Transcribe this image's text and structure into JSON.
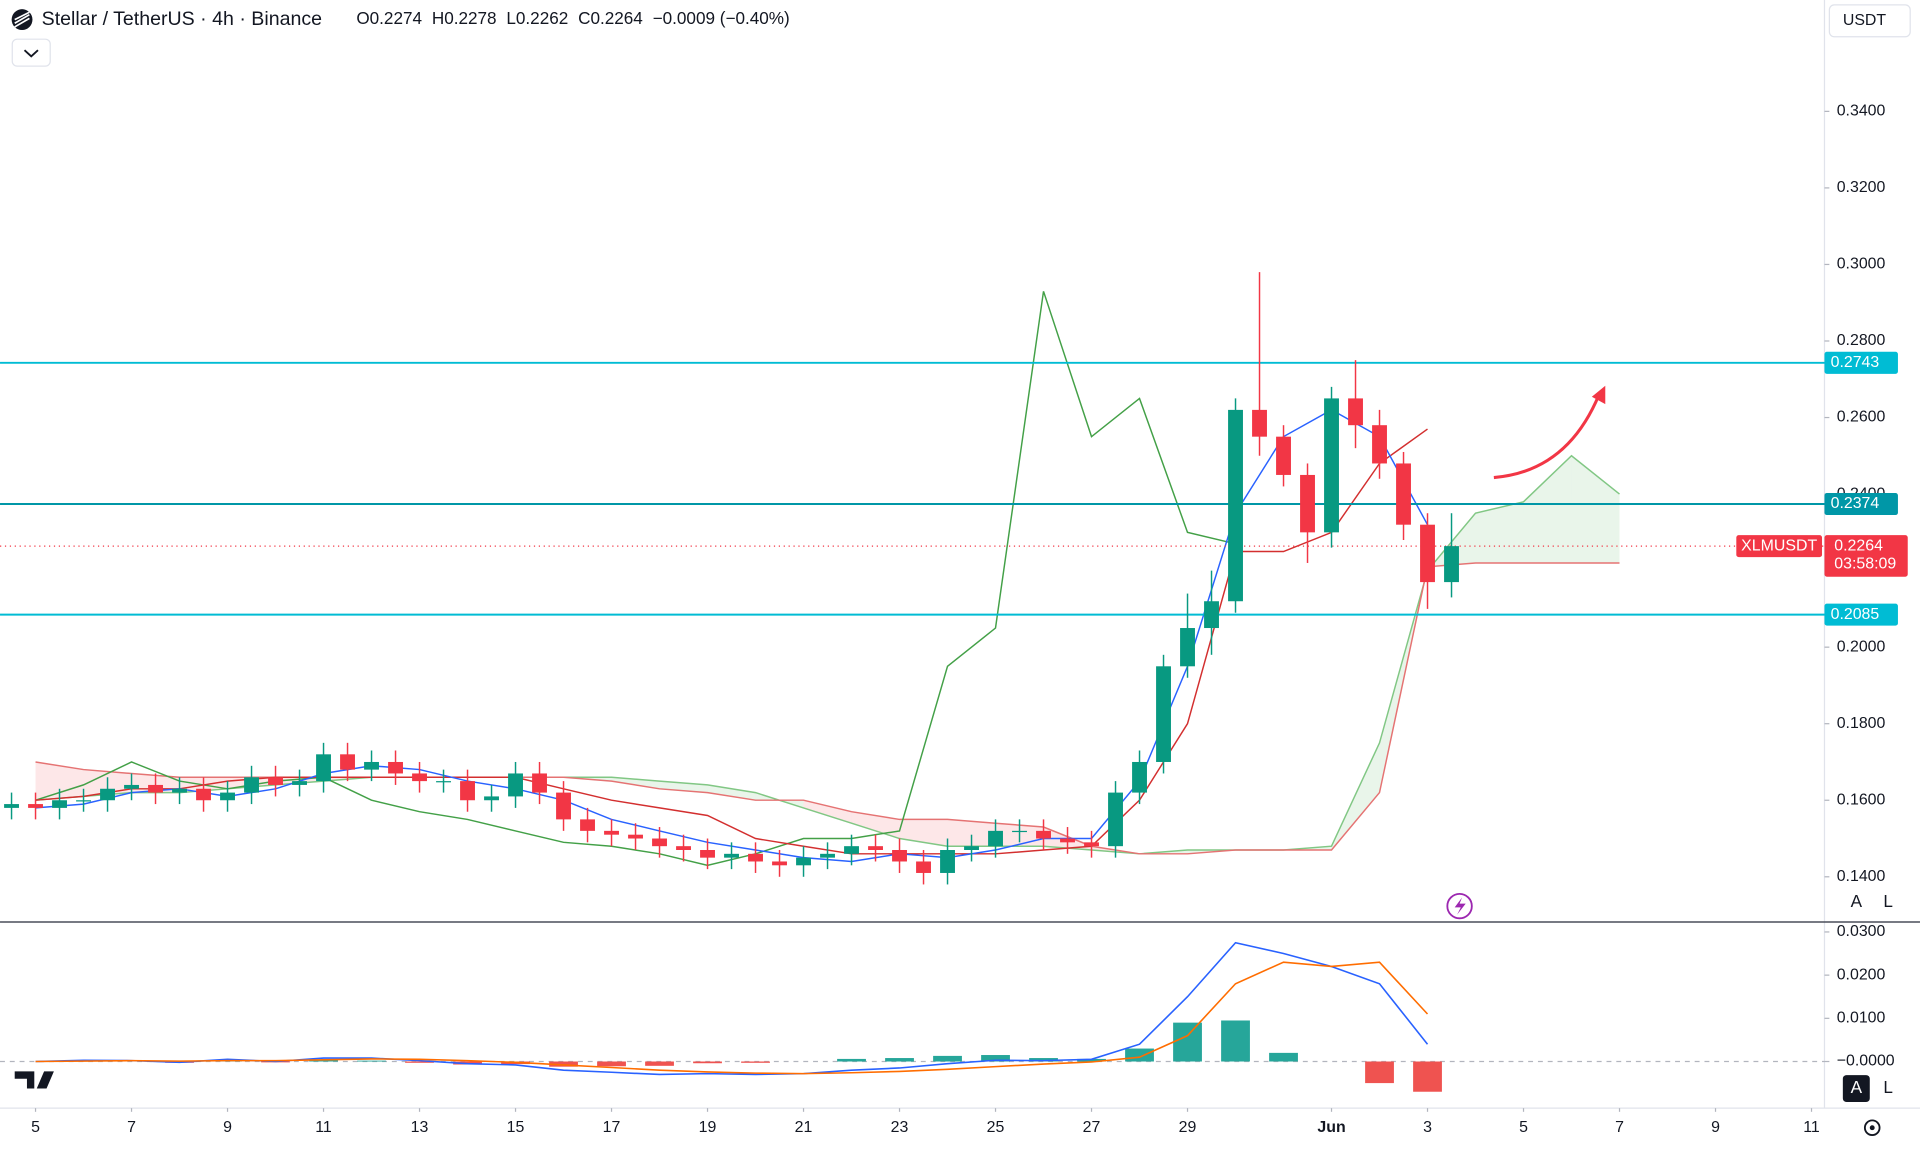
{
  "chart_data": {
    "type": "candlestick",
    "title": "Stellar / TetherUS · 4h · Binance",
    "ohlc_labels": [
      "O0.2274",
      "H0.2278",
      "L0.2262",
      "C0.2264",
      "−0.0009 (−0.40%)"
    ],
    "currency": "USDT",
    "symbol": "XLMUSDT",
    "countdown": "03:58:09",
    "last_price": 0.2264,
    "buttons": {
      "auto": "A",
      "log": "L"
    },
    "up_color": "#089981",
    "down_color": "#f23645",
    "xlim": [
      4.26,
      42.27
    ],
    "xticks": [
      5,
      7,
      9,
      11,
      13,
      15,
      17,
      19,
      21,
      23,
      25,
      27,
      29,
      {
        "value": 32,
        "label": "Jun"
      },
      {
        "value": 34,
        "label": "3"
      },
      {
        "value": 36,
        "label": "5"
      },
      {
        "value": 38,
        "label": "7"
      },
      {
        "value": 40,
        "label": "9"
      },
      {
        "value": 42,
        "label": "11"
      }
    ],
    "ylim": [
      0.1285,
      0.3691
    ],
    "yticks": [
      {
        "value": 0.14,
        "label": "0.1400"
      },
      {
        "value": 0.16,
        "label": "0.1600"
      },
      {
        "value": 0.18,
        "label": "0.1800"
      },
      {
        "value": 0.2,
        "label": "0.2000"
      },
      {
        "value": 0.24,
        "label": "0.2400"
      },
      {
        "value": 0.26,
        "label": "0.2600"
      },
      {
        "value": 0.28,
        "label": "0.2800"
      },
      {
        "value": 0.3,
        "label": "0.3000"
      },
      {
        "value": 0.32,
        "label": "0.3200"
      },
      {
        "value": 0.34,
        "label": "0.3400"
      }
    ],
    "levels": [
      {
        "value": 0.2743,
        "color": "#00bcd4"
      },
      {
        "value": 0.2374,
        "color": "#0097a7"
      },
      {
        "value": 0.2085,
        "color": "#00bcd4"
      }
    ],
    "x": [
      4.5,
      5,
      5.5,
      6,
      6.5,
      7,
      7.5,
      8,
      8.5,
      9,
      9.5,
      10,
      10.5,
      11,
      11.5,
      12,
      12.5,
      13,
      13.5,
      14,
      14.5,
      15,
      15.5,
      16,
      16.5,
      17,
      17.5,
      18,
      18.5,
      19,
      19.5,
      20,
      20.5,
      21,
      21.5,
      22,
      22.5,
      23,
      23.5,
      24,
      24.5,
      25,
      25.5,
      26,
      26.5,
      27,
      27.5,
      28,
      28.5,
      29,
      29.5,
      30,
      30.5,
      31,
      31.5,
      32,
      32.5,
      33,
      33.5,
      34,
      34.5
    ],
    "open": [
      0.158,
      0.159,
      0.158,
      0.16,
      0.16,
      0.163,
      0.164,
      0.162,
      0.163,
      0.16,
      0.162,
      0.166,
      0.164,
      0.165,
      0.172,
      0.168,
      0.17,
      0.167,
      0.165,
      0.165,
      0.16,
      0.161,
      0.167,
      0.162,
      0.155,
      0.152,
      0.151,
      0.15,
      0.148,
      0.147,
      0.145,
      0.146,
      0.144,
      0.143,
      0.145,
      0.146,
      0.148,
      0.147,
      0.144,
      0.141,
      0.147,
      0.148,
      0.152,
      0.152,
      0.15,
      0.149,
      0.148,
      0.162,
      0.17,
      0.195,
      0.205,
      0.212,
      0.262,
      0.255,
      0.245,
      0.23,
      0.265,
      0.258,
      0.248,
      0.232,
      0.217
    ],
    "high": [
      0.162,
      0.162,
      0.163,
      0.163,
      0.166,
      0.167,
      0.167,
      0.166,
      0.166,
      0.165,
      0.169,
      0.169,
      0.168,
      0.175,
      0.175,
      0.173,
      0.173,
      0.17,
      0.168,
      0.168,
      0.164,
      0.17,
      0.17,
      0.165,
      0.158,
      0.155,
      0.154,
      0.153,
      0.151,
      0.15,
      0.149,
      0.149,
      0.147,
      0.148,
      0.149,
      0.151,
      0.151,
      0.15,
      0.147,
      0.15,
      0.151,
      0.155,
      0.155,
      0.155,
      0.153,
      0.152,
      0.165,
      0.173,
      0.198,
      0.214,
      0.22,
      0.265,
      0.298,
      0.258,
      0.248,
      0.268,
      0.275,
      0.262,
      0.251,
      0.235,
      0.235
    ],
    "low": [
      0.155,
      0.155,
      0.155,
      0.157,
      0.157,
      0.16,
      0.159,
      0.159,
      0.157,
      0.157,
      0.159,
      0.161,
      0.161,
      0.162,
      0.165,
      0.165,
      0.164,
      0.162,
      0.162,
      0.157,
      0.157,
      0.158,
      0.159,
      0.152,
      0.149,
      0.148,
      0.147,
      0.145,
      0.144,
      0.142,
      0.142,
      0.141,
      0.14,
      0.14,
      0.142,
      0.143,
      0.144,
      0.141,
      0.138,
      0.138,
      0.144,
      0.145,
      0.149,
      0.147,
      0.146,
      0.145,
      0.145,
      0.159,
      0.167,
      0.192,
      0.198,
      0.209,
      0.25,
      0.242,
      0.222,
      0.226,
      0.252,
      0.244,
      0.228,
      0.21,
      0.213
    ],
    "close": [
      0.159,
      0.158,
      0.16,
      0.16,
      0.163,
      0.164,
      0.162,
      0.163,
      0.16,
      0.162,
      0.166,
      0.164,
      0.165,
      0.172,
      0.168,
      0.17,
      0.167,
      0.165,
      0.165,
      0.16,
      0.161,
      0.167,
      0.162,
      0.155,
      0.152,
      0.151,
      0.15,
      0.148,
      0.147,
      0.145,
      0.146,
      0.144,
      0.143,
      0.145,
      0.146,
      0.148,
      0.147,
      0.144,
      0.141,
      0.147,
      0.148,
      0.152,
      0.152,
      0.15,
      0.149,
      0.148,
      0.162,
      0.17,
      0.195,
      0.205,
      0.212,
      0.262,
      0.255,
      0.245,
      0.23,
      0.265,
      0.258,
      0.248,
      0.232,
      0.217,
      0.2264
    ],
    "span_a": {
      "color": "#81c784",
      "x": [
        5,
        6,
        7,
        8,
        9,
        10,
        11,
        12,
        13,
        14,
        15,
        16,
        17,
        18,
        19,
        20,
        21,
        22,
        23,
        24,
        25,
        26,
        27,
        28,
        29,
        30,
        31,
        32,
        33,
        34,
        35,
        36,
        37,
        38
      ],
      "values": [
        0.16,
        0.161,
        0.162,
        0.162,
        0.163,
        0.164,
        0.165,
        0.166,
        0.166,
        0.166,
        0.166,
        0.166,
        0.166,
        0.165,
        0.164,
        0.162,
        0.158,
        0.154,
        0.15,
        0.148,
        0.148,
        0.148,
        0.147,
        0.146,
        0.147,
        0.147,
        0.147,
        0.148,
        0.175,
        0.22,
        0.235,
        0.238,
        0.25,
        0.24
      ]
    },
    "span_b": {
      "color": "#e57373",
      "x": [
        5,
        6,
        7,
        8,
        9,
        10,
        11,
        12,
        13,
        14,
        15,
        16,
        17,
        18,
        19,
        20,
        21,
        22,
        23,
        24,
        25,
        26,
        27,
        28,
        29,
        30,
        31,
        32,
        33,
        34,
        35,
        36,
        37,
        38
      ],
      "values": [
        0.17,
        0.168,
        0.167,
        0.166,
        0.166,
        0.166,
        0.166,
        0.166,
        0.166,
        0.166,
        0.166,
        0.166,
        0.165,
        0.163,
        0.162,
        0.16,
        0.16,
        0.157,
        0.155,
        0.155,
        0.154,
        0.153,
        0.148,
        0.146,
        0.146,
        0.147,
        0.147,
        0.147,
        0.162,
        0.221,
        0.222,
        0.222,
        0.222,
        0.222
      ]
    },
    "conversion_line": {
      "color": "#2962ff",
      "x": [
        5,
        6,
        7,
        8,
        9,
        10,
        11,
        12,
        13,
        14,
        15,
        16,
        17,
        18,
        19,
        20,
        21,
        22,
        23,
        24,
        25,
        26,
        27,
        28,
        29,
        30,
        31,
        32,
        33,
        34
      ],
      "values": [
        0.158,
        0.159,
        0.162,
        0.163,
        0.161,
        0.163,
        0.167,
        0.169,
        0.168,
        0.165,
        0.163,
        0.16,
        0.155,
        0.152,
        0.149,
        0.147,
        0.145,
        0.144,
        0.146,
        0.145,
        0.147,
        0.15,
        0.15,
        0.165,
        0.195,
        0.235,
        0.255,
        0.262,
        0.255,
        0.232
      ]
    },
    "base_line": {
      "color": "#d32f2f",
      "x": [
        5,
        6,
        7,
        8,
        9,
        10,
        11,
        12,
        13,
        14,
        15,
        16,
        17,
        18,
        19,
        20,
        21,
        22,
        23,
        24,
        25,
        26,
        27,
        28,
        29,
        30,
        31,
        32,
        33,
        34
      ],
      "values": [
        0.16,
        0.161,
        0.163,
        0.163,
        0.165,
        0.166,
        0.166,
        0.166,
        0.166,
        0.166,
        0.166,
        0.163,
        0.16,
        0.158,
        0.156,
        0.15,
        0.148,
        0.146,
        0.146,
        0.146,
        0.146,
        0.147,
        0.148,
        0.16,
        0.18,
        0.225,
        0.225,
        0.23,
        0.248,
        0.257
      ]
    },
    "lagging_span": {
      "color": "#43a047",
      "x": [
        5,
        6,
        7,
        8,
        9,
        10,
        11,
        12,
        13,
        14,
        15,
        16,
        17,
        18,
        19,
        20,
        21,
        22,
        23,
        24,
        25,
        26,
        27,
        28,
        29,
        30
      ],
      "values": [
        0.16,
        0.164,
        0.17,
        0.165,
        0.163,
        0.165,
        0.166,
        0.16,
        0.157,
        0.155,
        0.152,
        0.149,
        0.148,
        0.146,
        0.143,
        0.146,
        0.15,
        0.15,
        0.152,
        0.195,
        0.205,
        0.293,
        0.255,
        0.265,
        0.23,
        0.227
      ]
    },
    "macd": {
      "ylim": [
        -0.0108,
        0.0323
      ],
      "yticks": [
        {
          "value": 0.03,
          "label": "0.0300"
        },
        {
          "value": 0.02,
          "label": "0.0200"
        },
        {
          "value": 0.01,
          "label": "0.0100"
        },
        {
          "value": 0,
          "label": "−0.0000"
        }
      ],
      "x": [
        5,
        6,
        7,
        8,
        9,
        10,
        11,
        12,
        13,
        14,
        15,
        16,
        17,
        18,
        19,
        20,
        21,
        22,
        23,
        24,
        25,
        26,
        27,
        28,
        29,
        30,
        31,
        32,
        33,
        34
      ],
      "macd_line": {
        "color": "#2962ff",
        "values": [
          0,
          0.0003,
          0.0002,
          -0.0002,
          0.0005,
          0,
          0.0008,
          0.0008,
          0.0002,
          -0.0005,
          -0.0008,
          -0.002,
          -0.0025,
          -0.003,
          -0.0028,
          -0.003,
          -0.0028,
          -0.002,
          -0.0015,
          -0.0005,
          0.0003,
          0.0002,
          0.0005,
          0.004,
          0.015,
          0.0275,
          0.025,
          0.022,
          0.018,
          0.004
        ]
      },
      "signal_line": {
        "color": "#ff6d00",
        "values": [
          0,
          0.0001,
          0.0002,
          0.0001,
          0.0002,
          0.0002,
          0.0004,
          0.0006,
          0.0005,
          0.0002,
          -0.0002,
          -0.0008,
          -0.0014,
          -0.002,
          -0.0024,
          -0.0027,
          -0.0028,
          -0.0026,
          -0.0023,
          -0.0018,
          -0.0012,
          -0.0006,
          -0.0001,
          0.001,
          0.006,
          0.018,
          0.023,
          0.022,
          0.023,
          0.011
        ]
      },
      "histogram": {
        "up_color": "#26a69a",
        "down_color": "#ef5350",
        "values": [
          0,
          0.0002,
          0,
          -0.0003,
          0.0003,
          -0.0002,
          0.0004,
          0.0002,
          -0.0003,
          -0.0007,
          -0.0006,
          -0.0012,
          -0.0011,
          -0.001,
          -0.0004,
          -0.0003,
          0,
          0.0006,
          0.0008,
          0.0013,
          0.0015,
          0.0008,
          0.0006,
          0.003,
          0.009,
          0.0095,
          0.002,
          0,
          -0.005,
          -0.007
        ]
      }
    }
  }
}
